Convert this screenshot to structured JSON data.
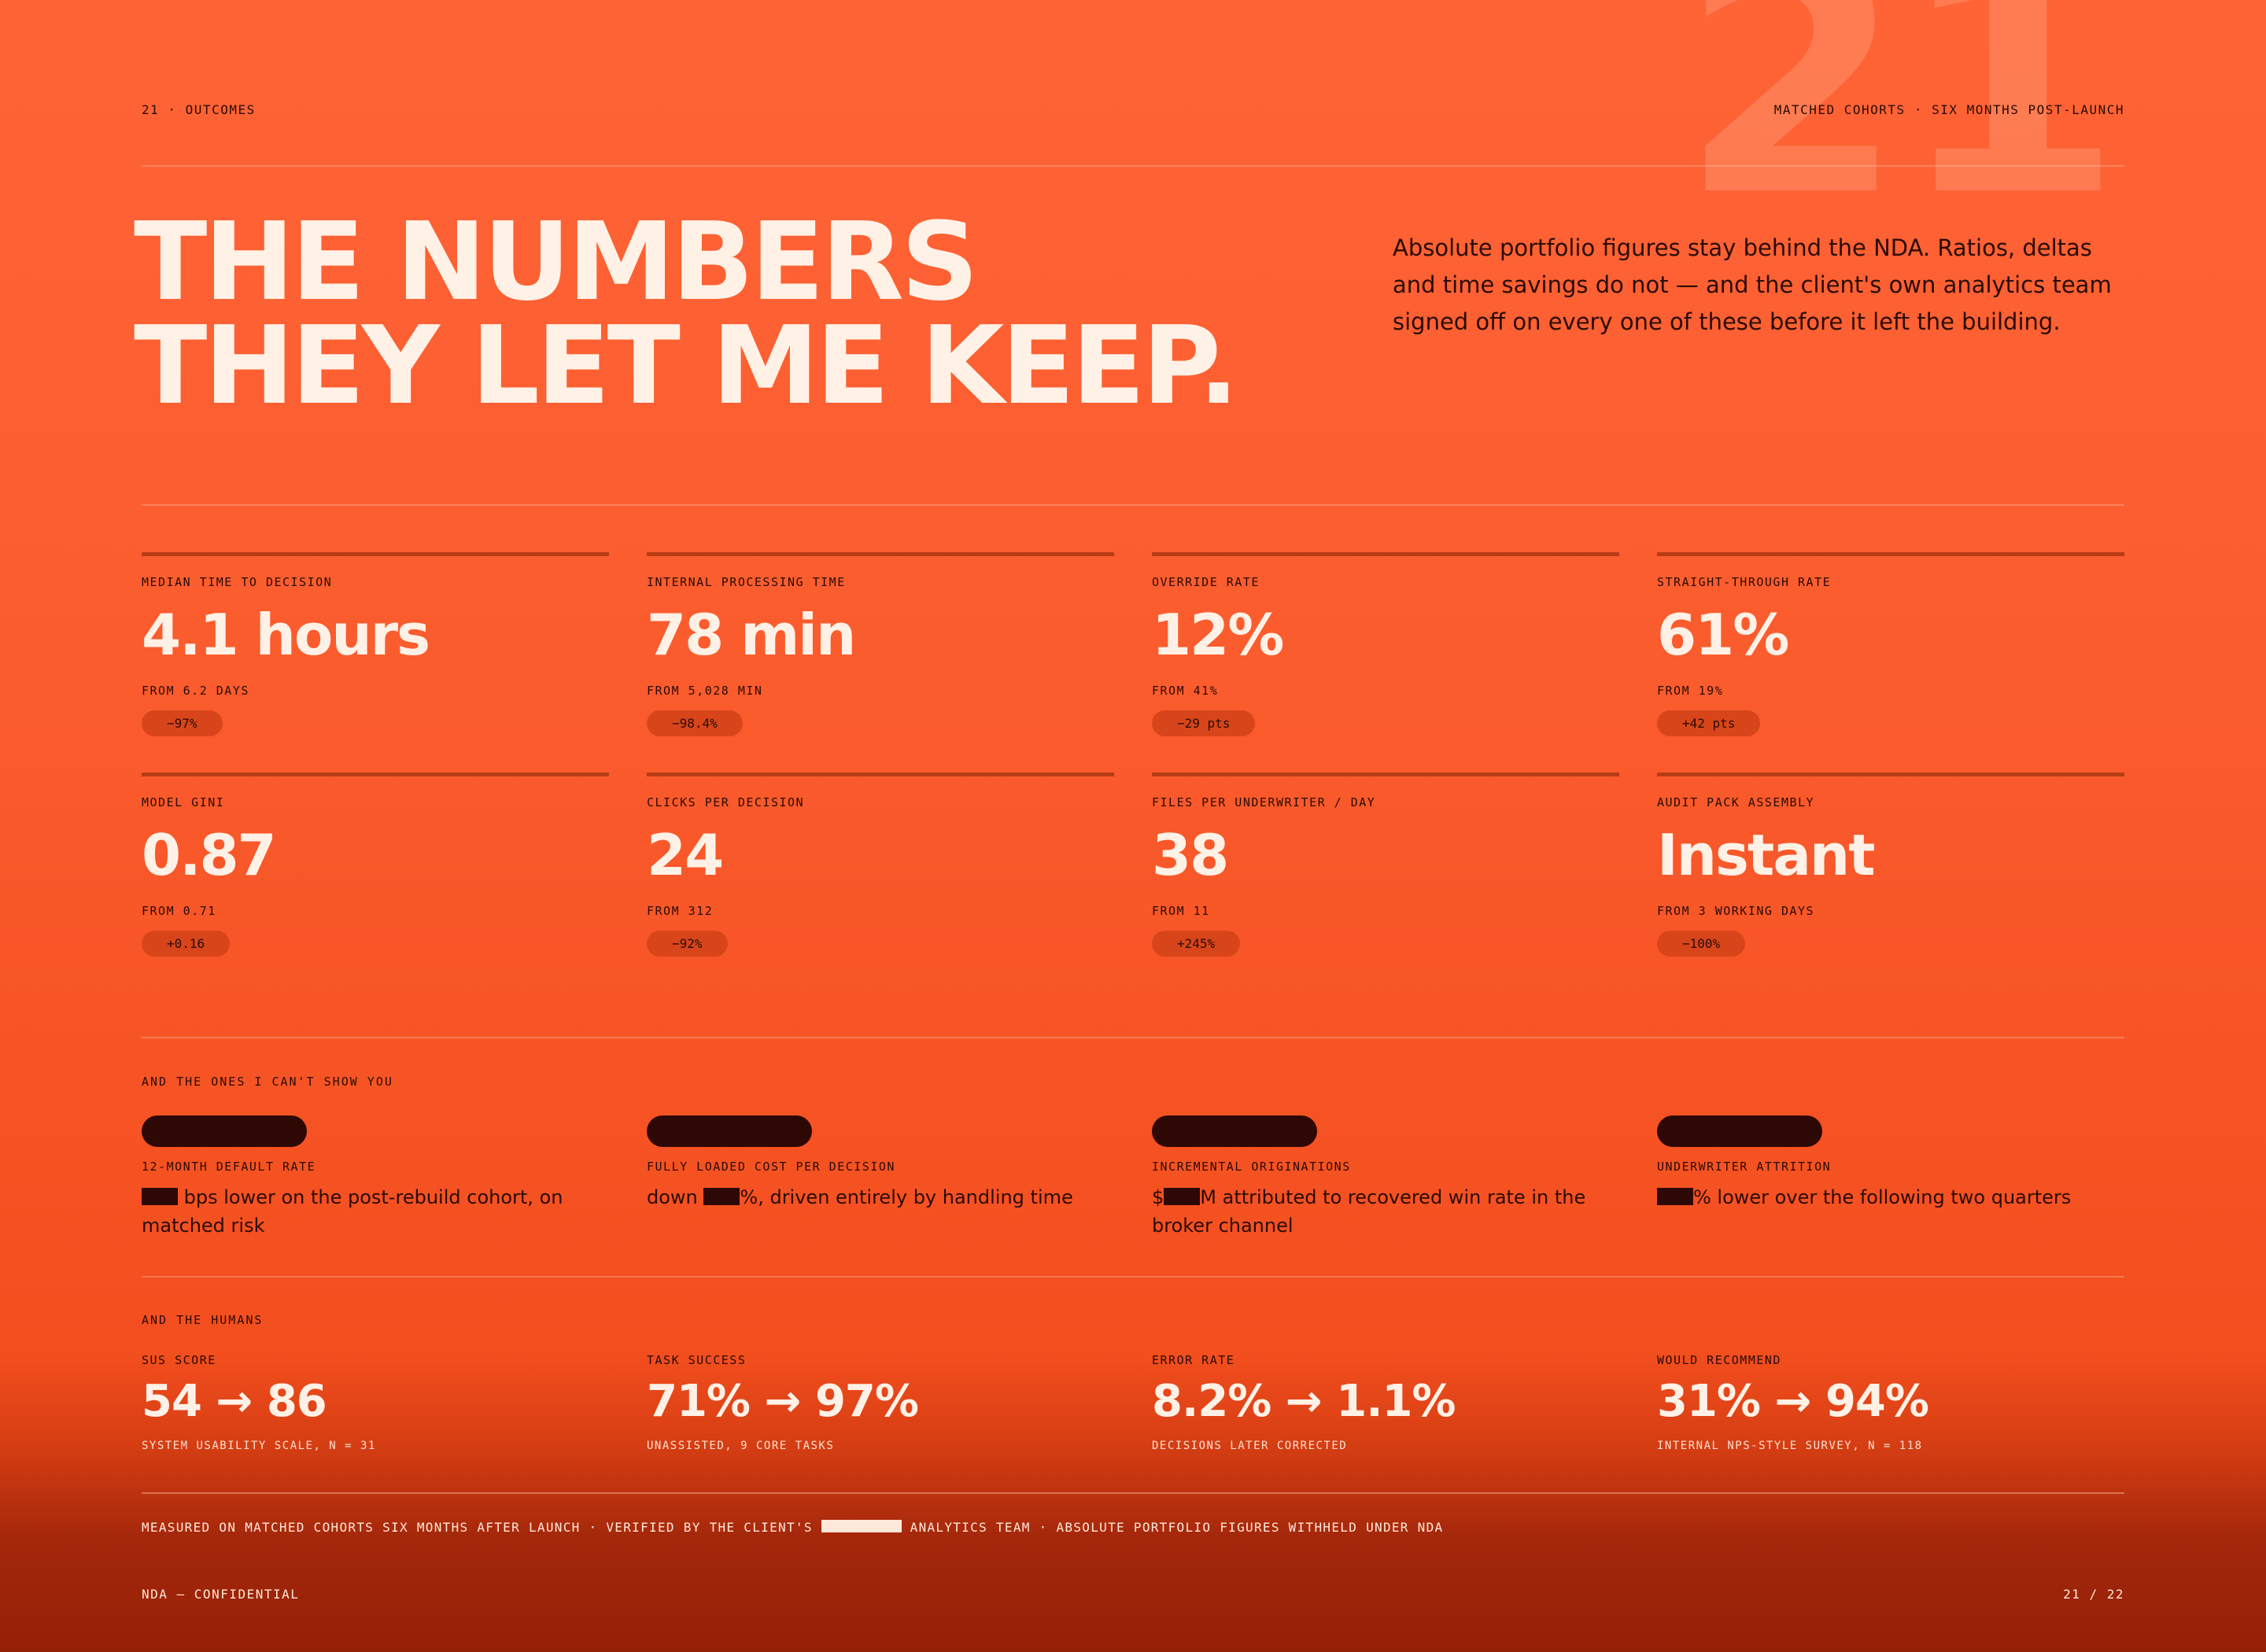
{
  "page_number_large": "21",
  "header": {
    "left": "21 · OUTCOMES",
    "right": "MATCHED COHORTS · SIX MONTHS POST-LAUNCH"
  },
  "headline": {
    "line1": "THE NUMBERS",
    "line2": "THEY LET ME KEEP."
  },
  "intro": "Absolute portfolio figures stay behind the NDA. Ratios, deltas and time savings do not — and the client's own analytics team signed off on every one of these before it left the building.",
  "stats": [
    {
      "label": "MEDIAN TIME TO DECISION",
      "value": "4.1 hours",
      "from": "FROM 6.2 DAYS",
      "delta": "−97%"
    },
    {
      "label": "INTERNAL PROCESSING TIME",
      "value": "78 min",
      "from": "FROM 5,028 MIN",
      "delta": "−98.4%"
    },
    {
      "label": "OVERRIDE RATE",
      "value": "12%",
      "from": "FROM 41%",
      "delta": "−29 pts"
    },
    {
      "label": "STRAIGHT-THROUGH RATE",
      "value": "61%",
      "from": "FROM 19%",
      "delta": "+42 pts"
    },
    {
      "label": "MODEL GINI",
      "value": "0.87",
      "from": "FROM 0.71",
      "delta": "+0.16"
    },
    {
      "label": "CLICKS PER DECISION",
      "value": "24",
      "from": "FROM 312",
      "delta": "−92%"
    },
    {
      "label": "FILES PER UNDERWRITER / DAY",
      "value": "38",
      "from": "FROM 11",
      "delta": "+245%"
    },
    {
      "label": "AUDIT PACK ASSEMBLY",
      "value": "Instant",
      "from": "FROM 3 WORKING DAYS",
      "delta": "−100%"
    }
  ],
  "redacted_section": {
    "label": "AND THE ONES I CAN'T SHOW YOU",
    "items": [
      {
        "label": "12-MONTH DEFAULT RATE",
        "pre": "",
        "post": " bps lower on the post-rebuild cohort, on matched risk"
      },
      {
        "label": "FULLY LOADED COST PER DECISION",
        "pre": "down ",
        "post": "%, driven entirely by handling time"
      },
      {
        "label": "INCREMENTAL ORIGINATIONS",
        "pre": "$",
        "post": "M attributed to recovered win rate in the broker channel"
      },
      {
        "label": "UNDERWRITER ATTRITION",
        "pre": "",
        "post": "% lower over the following two quarters"
      }
    ]
  },
  "humans_section": {
    "label": "AND THE HUMANS",
    "items": [
      {
        "label": "SUS SCORE",
        "value": "54 → 86",
        "note": "SYSTEM USABILITY SCALE, N = 31"
      },
      {
        "label": "TASK SUCCESS",
        "value": "71% → 97%",
        "note": "UNASSISTED, 9 CORE TASKS"
      },
      {
        "label": "ERROR RATE",
        "value": "8.2% → 1.1%",
        "note": "DECISIONS LATER CORRECTED"
      },
      {
        "label": "WOULD RECOMMEND",
        "value": "31% → 94%",
        "note": "INTERNAL NPS-STYLE SURVEY, N = 118"
      }
    ]
  },
  "footnote": {
    "pre": "MEASURED ON MATCHED COHORTS SIX MONTHS AFTER LAUNCH · VERIFIED BY THE CLIENT'S ",
    "post": " ANALYTICS TEAM · ABSOLUTE PORTFOLIO FIGURES WITHHELD UNDER NDA"
  },
  "footer": {
    "left": "NDA — CONFIDENTIAL",
    "right": "21 / 22"
  }
}
